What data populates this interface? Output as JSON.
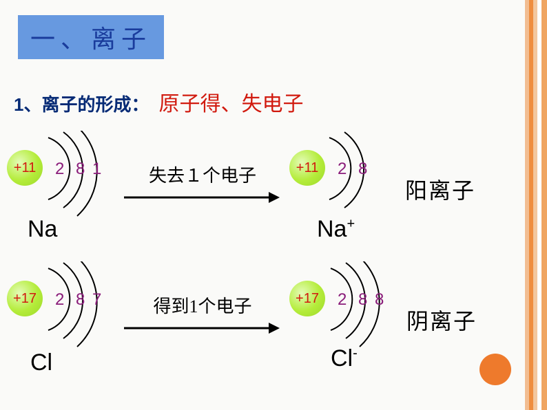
{
  "stripes": [
    "#f2bd91",
    "#ef8d3f",
    "#f3c79f",
    "#ffffff",
    "#efa562"
  ],
  "stripe_widths": [
    6,
    6,
    6,
    6,
    8
  ],
  "title": {
    "text": "一、离子",
    "color": "#1a3c9c",
    "bg": "#6799e0"
  },
  "subtitle": {
    "num": "1",
    "label": "、离子的形成：",
    "desc": "原子得、失电子",
    "num_color": "#052a75",
    "label_color": "#052a75",
    "desc_color": "#d11a0f"
  },
  "shell_colors": {
    "nucleus_text": "#d11a0f",
    "shell_text": "#8a1c7a",
    "arc_color": "#000000"
  },
  "atoms": {
    "na": {
      "nucleus": "+11",
      "shells": [
        "2",
        "8",
        "1"
      ],
      "label": "Na",
      "label_sup": ""
    },
    "na_p": {
      "nucleus": "+11",
      "shells": [
        "2",
        "8"
      ],
      "label": "Na",
      "label_sup": "+"
    },
    "cl": {
      "nucleus": "+17",
      "shells": [
        "2",
        "8",
        "7"
      ],
      "label": "Cl",
      "label_sup": ""
    },
    "cl_m": {
      "nucleus": "+17",
      "shells": [
        "2",
        "8",
        "8"
      ],
      "label": "Cl",
      "label_sup": "-"
    }
  },
  "arrows": {
    "lose": "失去１个电子",
    "gain": "得到1个电子"
  },
  "ion_labels": {
    "cation": "阳离子",
    "anion": "阴离子"
  },
  "orange_dot_color": "#ee7a2c"
}
